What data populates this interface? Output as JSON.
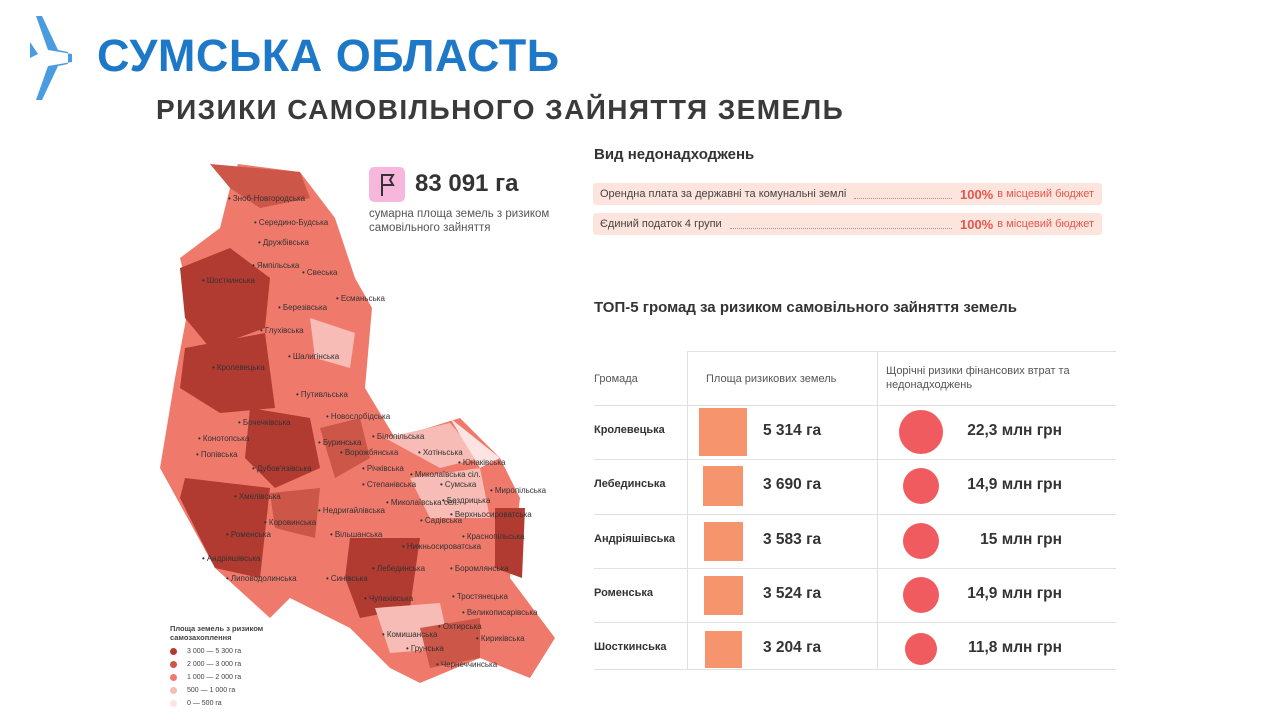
{
  "header": {
    "title": "СУМСЬКА ОБЛАСТЬ",
    "subtitle": "РИЗИКИ САМОВІЛЬНОГО ЗАЙНЯТТЯ ЗЕМЕЛЬ"
  },
  "summary": {
    "value": "83 091 га",
    "description": "сумарна площа земель з ризиком самовільного зайняття",
    "icon": "flag-icon"
  },
  "map": {
    "legend": {
      "title": "Площа земель з ризиком самозахоплення",
      "items": [
        {
          "label": "3 000 — 5 300 га",
          "color": "#b23b31"
        },
        {
          "label": "2 000 — 3 000 га",
          "color": "#cc5647"
        },
        {
          "label": "1 000 — 2 000 га",
          "color": "#ef7a6c"
        },
        {
          "label": "500 — 1 000 га",
          "color": "#f6bcb5"
        },
        {
          "label": "0 — 500 га",
          "color": "#fbe4e2"
        }
      ]
    },
    "communities": [
      "Зноб-Новгородська",
      "Середино-Будська",
      "Дружбівська",
      "Ямпільська",
      "Свеська",
      "Шосткинська",
      "Есманьська",
      "Березівська",
      "Глухівська",
      "Шалигінська",
      "Кролевецька",
      "Путивльська",
      "Новослобідська",
      "Бочечківська",
      "Конотопська",
      "Буринська",
      "Білопільська",
      "Попівська",
      "Ворожбянська",
      "Хотіньська",
      "Дубов'язівська",
      "Річківська",
      "Юнаківська",
      "Степанівська",
      "Миколаївська сіл.",
      "Сумська",
      "Хмелівська",
      "Миколаївська сел.",
      "Бездрицька",
      "Миропільська",
      "Недригайлівська",
      "Садівська",
      "Верхньосироватська",
      "Коровинська",
      "Роменська",
      "Вільшанська",
      "Краснопільська",
      "Нижньосироватська",
      "Андріяшівська",
      "Лебединська",
      "Боромлянська",
      "Липоводолинська",
      "Синівська",
      "Чупахівська",
      "Тростянецька",
      "Великописарівська",
      "Комишанська",
      "Охтирська",
      "Кириківська",
      "Грунська",
      "Чернеччинська"
    ]
  },
  "revenue": {
    "title": "Вид недонадходжень",
    "rows": [
      {
        "label": "Орендна плата за державні та комунальні землі",
        "pct": "100%",
        "dest": "в місцевий бюджет"
      },
      {
        "label": "Єдиний податок 4 групи",
        "pct": "100%",
        "dest": "в місцевий бюджет"
      }
    ]
  },
  "top5": {
    "title": "ТОП-5 громад за ризиком самовільного зайняття земель",
    "headers": {
      "community": "Громада",
      "area": "Площа ризикових земель",
      "risk": "Щорічні ризики фінансових втрат та недонадходжень"
    },
    "rows": [
      {
        "name": "Кролевецька",
        "area": "5 314 га",
        "area_value": 5314,
        "risk": "22,3 млн грн",
        "risk_value": 22.3
      },
      {
        "name": "Лебединська",
        "area": "3 690 га",
        "area_value": 3690,
        "risk": "14,9 млн грн",
        "risk_value": 14.9
      },
      {
        "name": "Андріяшівська",
        "area": "3 583 га",
        "area_value": 3583,
        "risk": "15 млн грн",
        "risk_value": 15
      },
      {
        "name": "Роменська",
        "area": "3 524 га",
        "area_value": 3524,
        "risk": "14,9 млн грн",
        "risk_value": 14.9
      },
      {
        "name": "Шосткинська",
        "area": "3 204 га",
        "area_value": 3204,
        "risk": "11,8 млн грн",
        "risk_value": 11.8
      }
    ]
  },
  "colors": {
    "title_blue": "#1d78c8",
    "accent_red": "#e4574f",
    "square": "#f6946d",
    "circle": "#ef5b5f",
    "row_bg": "#fde4dc"
  }
}
